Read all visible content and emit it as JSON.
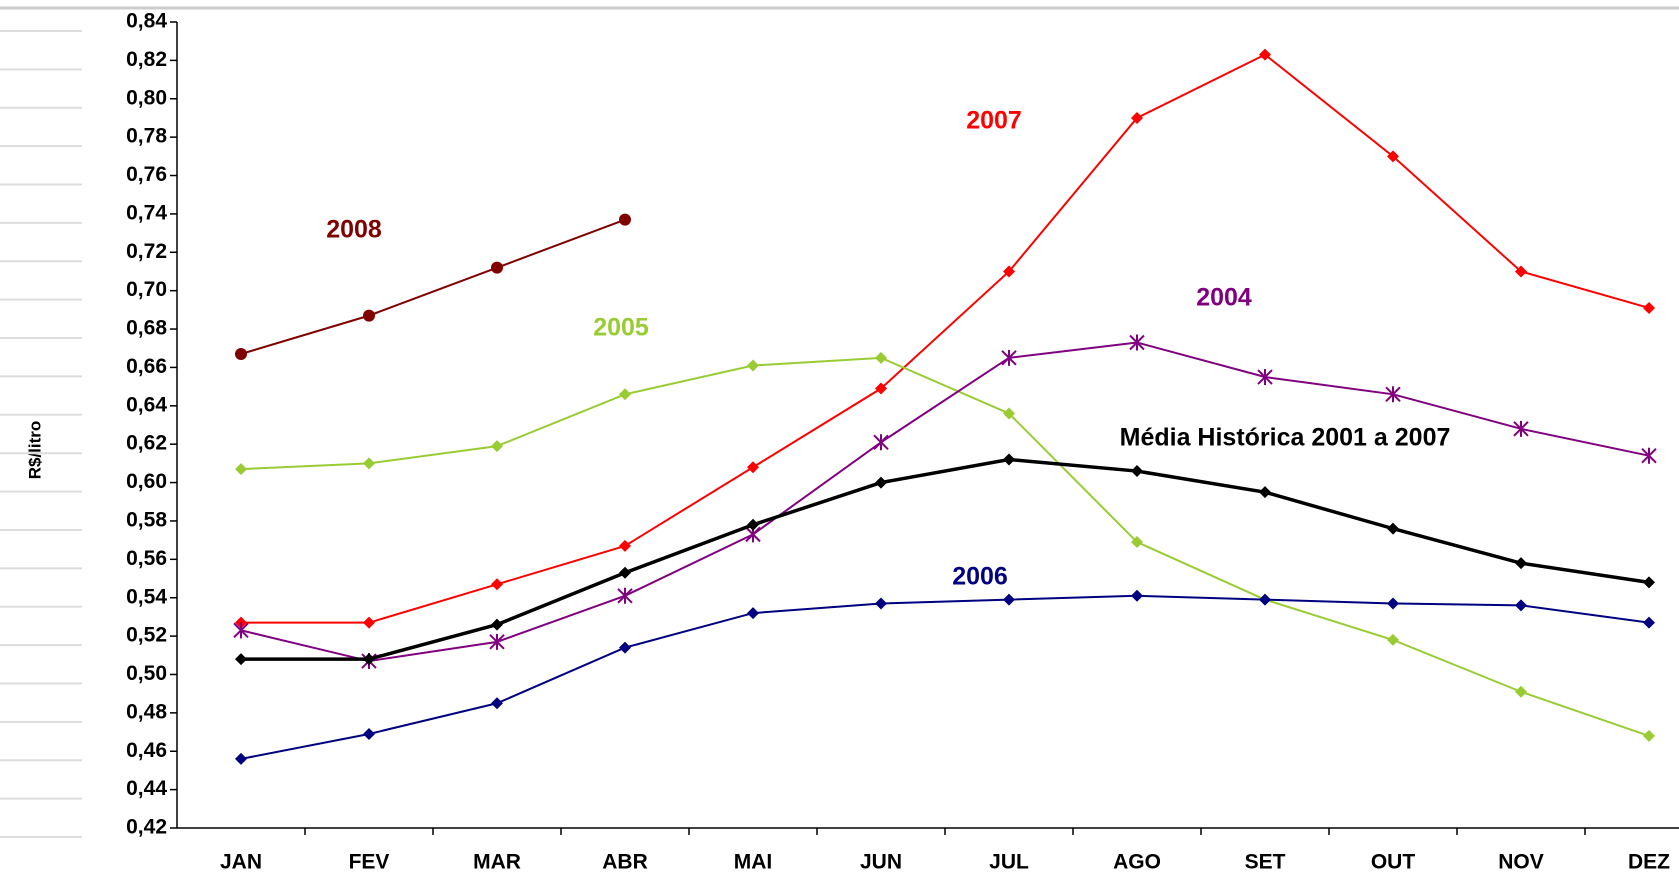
{
  "chart_data": {
    "type": "line",
    "y_label": "R$/litro",
    "categories": [
      "JAN",
      "FEV",
      "MAR",
      "ABR",
      "MAI",
      "JUN",
      "JUL",
      "AGO",
      "SET",
      "OUT",
      "NOV",
      "DEZ"
    ],
    "series": [
      {
        "name": "2008",
        "color": "#800000",
        "marker": "circle",
        "values": [
          0.667,
          0.687,
          0.712,
          0.737,
          null,
          null,
          null,
          null,
          null,
          null,
          null,
          null
        ]
      },
      {
        "name": "2007",
        "color": "#ff0000",
        "marker": "diamond",
        "values": [
          0.527,
          0.527,
          0.547,
          0.567,
          0.608,
          0.649,
          0.71,
          0.79,
          0.823,
          0.77,
          0.71,
          0.691
        ]
      },
      {
        "name": "2005",
        "color": "#99cc33",
        "marker": "diamond",
        "values": [
          0.607,
          0.61,
          0.619,
          0.646,
          0.661,
          0.665,
          0.636,
          0.569,
          0.539,
          0.518,
          0.491,
          0.468
        ]
      },
      {
        "name": "2004",
        "color": "#800080",
        "marker": "asterisk",
        "values": [
          0.523,
          0.507,
          0.517,
          0.541,
          0.573,
          0.621,
          0.665,
          0.673,
          0.655,
          0.646,
          0.628,
          0.614
        ]
      },
      {
        "name": "Média Histórica 2001 a 2007",
        "color": "#000000",
        "marker": "diamond",
        "values": [
          0.508,
          0.508,
          0.526,
          0.553,
          0.578,
          0.6,
          0.612,
          0.606,
          0.595,
          0.576,
          0.558,
          0.548
        ]
      },
      {
        "name": "2006",
        "color": "#000080",
        "marker": "diamond",
        "values": [
          0.456,
          0.469,
          0.485,
          0.514,
          0.532,
          0.537,
          0.539,
          0.541,
          0.539,
          0.537,
          0.536,
          0.527
        ]
      }
    ],
    "ylim": [
      0.42,
      0.84
    ],
    "yticks": [
      {
        "value": 0.42,
        "label": "0,42"
      },
      {
        "value": 0.44,
        "label": "0,44"
      },
      {
        "value": 0.46,
        "label": "0,46"
      },
      {
        "value": 0.48,
        "label": "0,48"
      },
      {
        "value": 0.5,
        "label": "0,50"
      },
      {
        "value": 0.52,
        "label": "0,52"
      },
      {
        "value": 0.54,
        "label": "0,54"
      },
      {
        "value": 0.56,
        "label": "0,56"
      },
      {
        "value": 0.58,
        "label": "0,58"
      },
      {
        "value": 0.6,
        "label": "0,60"
      },
      {
        "value": 0.62,
        "label": "0,62"
      },
      {
        "value": 0.64,
        "label": "0,64"
      },
      {
        "value": 0.66,
        "label": "0,66"
      },
      {
        "value": 0.68,
        "label": "0,68"
      },
      {
        "value": 0.7,
        "label": "0,70"
      },
      {
        "value": 0.72,
        "label": "0,72"
      },
      {
        "value": 0.74,
        "label": "0,74"
      },
      {
        "value": 0.76,
        "label": "0,76"
      },
      {
        "value": 0.78,
        "label": "0,78"
      },
      {
        "value": 0.8,
        "label": "0,80"
      },
      {
        "value": 0.82,
        "label": "0,82"
      },
      {
        "value": 0.84,
        "label": "0,84"
      }
    ],
    "grid": false
  }
}
